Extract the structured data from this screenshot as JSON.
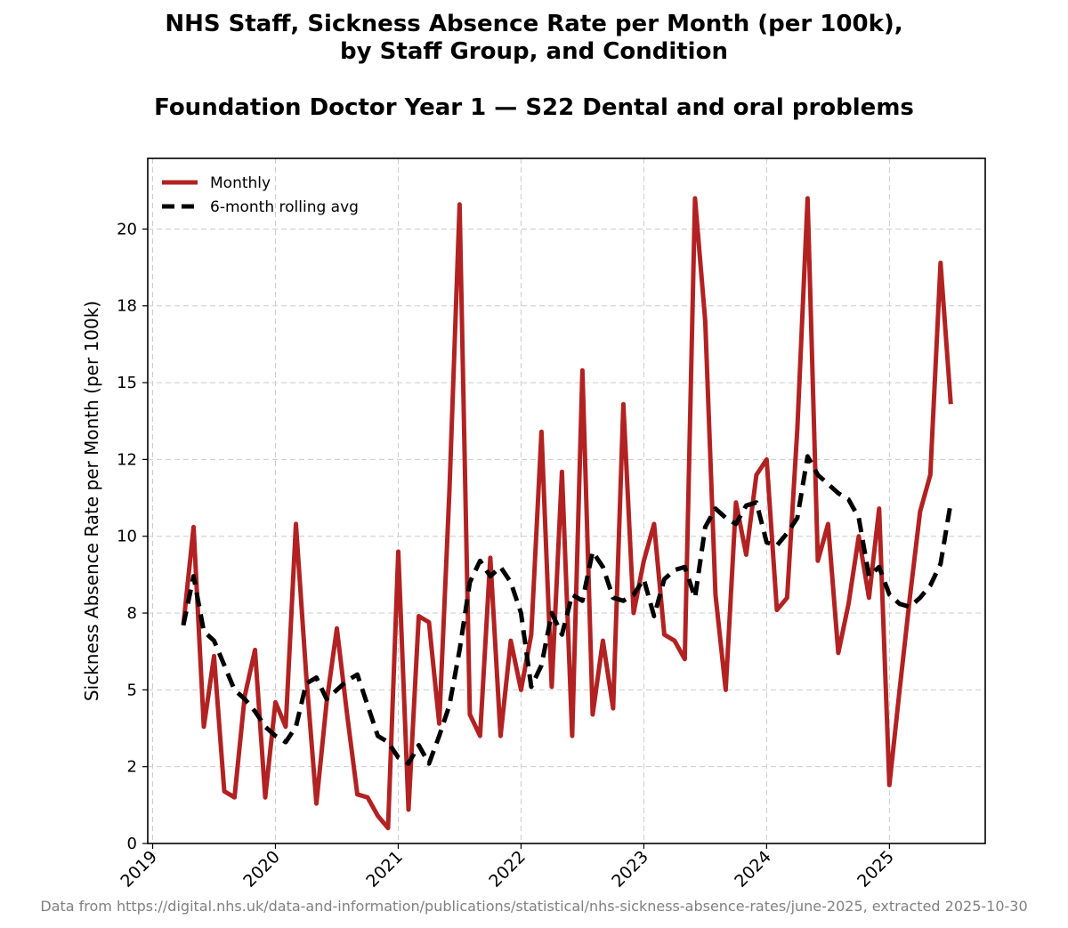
{
  "chart_data": {
    "type": "line",
    "title_lines": [
      "NHS Staff, Sickness Absence Rate per Month (per 100k),",
      "by Staff Group, and Condition"
    ],
    "subtitle": "Foundation Doctor Year 1 — S22 Dental and oral problems",
    "xlabel": "",
    "ylabel": "Sickness Absence Rate per Month (per 100k)",
    "xlim": [
      2018.96,
      2025.78
    ],
    "ylim": [
      0,
      22.3
    ],
    "x_ticks": [
      2019,
      2020,
      2021,
      2022,
      2023,
      2024,
      2025
    ],
    "x_tick_labels": [
      "2019",
      "2020",
      "2021",
      "2022",
      "2023",
      "2024",
      "2025"
    ],
    "y_ticks": [
      0,
      2.5,
      5,
      7.5,
      10,
      12.5,
      15,
      17.5,
      20
    ],
    "y_tick_labels": [
      "0",
      "2",
      "5",
      "8",
      "10",
      "12",
      "15",
      "18",
      "20"
    ],
    "grid": true,
    "legend_position": "top-left",
    "x_start": 2019.25,
    "x_step": 0.08333,
    "series": [
      {
        "name": "Monthly",
        "color": "#b22222",
        "style": "solid",
        "values": [
          7.1,
          10.3,
          3.8,
          6.1,
          1.7,
          1.5,
          4.8,
          6.3,
          1.5,
          4.6,
          3.8,
          10.4,
          5.5,
          1.3,
          4.6,
          7.0,
          4.2,
          1.6,
          1.5,
          0.9,
          0.5,
          9.5,
          1.1,
          7.4,
          7.2,
          3.9,
          11.5,
          20.8,
          4.2,
          3.5,
          9.3,
          3.5,
          6.6,
          5.0,
          6.8,
          13.4,
          5.1,
          12.1,
          3.5,
          15.4,
          4.2,
          6.6,
          4.4,
          14.3,
          7.5,
          9.2,
          10.4,
          6.8,
          6.6,
          6.0,
          21.0,
          17.0,
          8.1,
          5.0,
          11.1,
          9.4,
          12.0,
          12.5,
          7.6,
          8.0,
          13.5,
          21.0,
          9.2,
          10.4,
          6.2,
          7.8,
          10.0,
          8.0,
          10.9,
          1.9,
          5.0,
          8.0,
          10.8,
          12.0,
          18.9,
          14.3
        ]
      },
      {
        "name": "6-month rolling avg",
        "color": "#000000",
        "style": "dashed",
        "values": [
          7.1,
          8.7,
          6.9,
          6.6,
          5.8,
          5.0,
          4.7,
          4.3,
          3.8,
          3.5,
          3.3,
          3.8,
          5.2,
          5.4,
          4.7,
          5.0,
          5.3,
          5.5,
          4.5,
          3.5,
          3.3,
          2.8,
          2.6,
          3.2,
          2.6,
          3.5,
          4.5,
          6.3,
          8.5,
          9.2,
          8.7,
          9.0,
          8.5,
          7.5,
          5.1,
          5.8,
          7.5,
          6.8,
          8.1,
          7.9,
          9.5,
          9.0,
          8.0,
          7.9,
          8.1,
          8.6,
          7.4,
          8.6,
          8.9,
          9.0,
          8.0,
          10.3,
          10.9,
          10.6,
          10.4,
          11.0,
          11.1,
          9.8,
          9.7,
          10.1,
          10.6,
          12.6,
          12.0,
          11.7,
          11.4,
          11.2,
          10.6,
          8.7,
          9.0,
          8.1,
          7.8,
          7.7,
          8.0,
          8.4,
          9.1,
          11.1
        ]
      }
    ],
    "footer": "Data from https://digital.nhs.uk/data-and-information/publications/statistical/nhs-sickness-absence-rates/june-2025, extracted 2025-10-30"
  }
}
